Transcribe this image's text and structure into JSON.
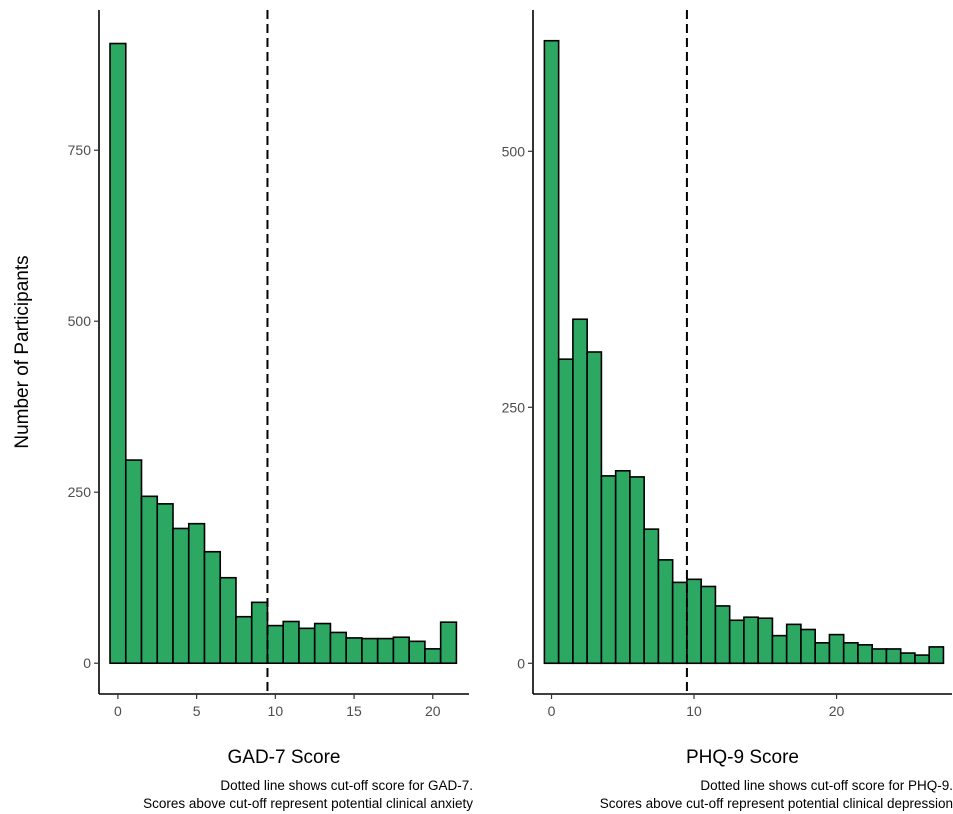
{
  "ylabel": "Number of Participants",
  "chart_data": [
    {
      "type": "bar",
      "xlabel": "GAD-7 Score",
      "ylabel": "Number of Participants",
      "caption": [
        "Dotted line shows cut-off score for GAD-7.",
        "Scores above cut-off represent potential clinical anxiety"
      ],
      "x": [
        0,
        1,
        2,
        3,
        4,
        5,
        6,
        7,
        8,
        9,
        10,
        11,
        12,
        13,
        14,
        15,
        16,
        17,
        18,
        19,
        20,
        21
      ],
      "values": [
        906,
        297,
        244,
        233,
        197,
        204,
        163,
        125,
        68,
        89,
        55,
        61,
        51,
        58,
        45,
        37,
        36,
        36,
        38,
        32,
        21,
        60
      ],
      "cutoff": 9.5,
      "xlim": [
        -1.2,
        22.3
      ],
      "ylim": [
        -45,
        955
      ],
      "xticks": [
        0,
        5,
        10,
        15,
        20
      ],
      "yticks": [
        0,
        250,
        500,
        750
      ],
      "grid": false
    },
    {
      "type": "bar",
      "xlabel": "PHQ-9 Score",
      "ylabel": "",
      "caption": [
        "Dotted line shows cut-off score for PHQ-9.",
        "Scores above cut-off represent potential clinical depression"
      ],
      "x": [
        0,
        1,
        2,
        3,
        4,
        5,
        6,
        7,
        8,
        9,
        10,
        11,
        12,
        13,
        14,
        15,
        16,
        17,
        18,
        19,
        20,
        21,
        22,
        23,
        24,
        25,
        26,
        27
      ],
      "values": [
        608,
        297,
        336,
        304,
        183,
        188,
        182,
        131,
        101,
        79,
        82,
        75,
        56,
        42,
        45,
        44,
        27,
        38,
        33,
        20,
        28,
        20,
        18,
        14,
        14,
        10,
        8,
        16
      ],
      "cutoff": 9.5,
      "xlim": [
        -1.3,
        28.1
      ],
      "ylim": [
        -30,
        638
      ],
      "xticks": [
        0,
        10,
        20
      ],
      "yticks": [
        0,
        250,
        500
      ],
      "grid": false
    }
  ]
}
